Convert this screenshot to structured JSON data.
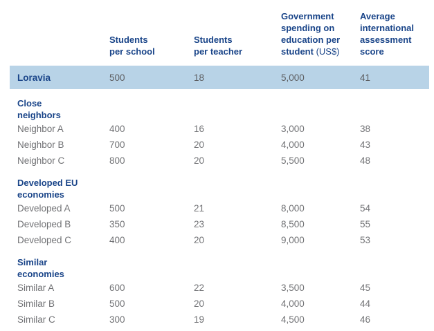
{
  "colors": {
    "highlight_band": "#b8d3e7",
    "header_text": "#1a4589",
    "data_text": "#717275",
    "background": "#ffffff"
  },
  "table": {
    "headers": [
      {
        "main": "Students\nper school",
        "suffix": ""
      },
      {
        "main": "Students\nper teacher",
        "suffix": ""
      },
      {
        "main": "Government\nspending on\neducation per\nstudent",
        "suffix": " (US$)"
      },
      {
        "main": "Average\ninternational\nassessment\nscore",
        "suffix": ""
      }
    ],
    "highlight_row": {
      "label": "Loravia",
      "values": [
        "500",
        "18",
        "5,000",
        "41"
      ]
    },
    "sections": [
      {
        "title": "Close\nneighbors",
        "rows": [
          {
            "label": "Neighbor A",
            "values": [
              "400",
              "16",
              "3,000",
              "38"
            ]
          },
          {
            "label": "Neighbor B",
            "values": [
              "700",
              "20",
              "4,000",
              "43"
            ]
          },
          {
            "label": "Neighbor C",
            "values": [
              "800",
              "20",
              "5,500",
              "48"
            ]
          }
        ]
      },
      {
        "title": "Developed EU\neconomies",
        "rows": [
          {
            "label": "Developed A",
            "values": [
              "500",
              "21",
              "8,000",
              "54"
            ]
          },
          {
            "label": "Developed B",
            "values": [
              "350",
              "23",
              "8,500",
              "55"
            ]
          },
          {
            "label": "Developed C",
            "values": [
              "400",
              "20",
              "9,000",
              "53"
            ]
          }
        ]
      },
      {
        "title": "Similar\neconomies",
        "rows": [
          {
            "label": "Similar A",
            "values": [
              "600",
              "22",
              "3,500",
              "45"
            ]
          },
          {
            "label": "Similar B",
            "values": [
              "500",
              "20",
              "4,000",
              "44"
            ]
          },
          {
            "label": "Similar C",
            "values": [
              "300",
              "19",
              "4,500",
              "46"
            ]
          }
        ]
      }
    ]
  },
  "chart_data": {
    "type": "table",
    "columns": [
      "Students per school",
      "Students per teacher",
      "Government spending on education per student (US$)",
      "Average international assessment score"
    ],
    "rows": [
      {
        "group": "",
        "label": "Loravia",
        "highlight": true,
        "values": [
          500,
          18,
          5000,
          41
        ]
      },
      {
        "group": "Close neighbors",
        "label": "Neighbor A",
        "values": [
          400,
          16,
          3000,
          38
        ]
      },
      {
        "group": "Close neighbors",
        "label": "Neighbor B",
        "values": [
          700,
          20,
          4000,
          43
        ]
      },
      {
        "group": "Close neighbors",
        "label": "Neighbor C",
        "values": [
          800,
          20,
          5500,
          48
        ]
      },
      {
        "group": "Developed EU economies",
        "label": "Developed A",
        "values": [
          500,
          21,
          8000,
          54
        ]
      },
      {
        "group": "Developed EU economies",
        "label": "Developed B",
        "values": [
          350,
          23,
          8500,
          55
        ]
      },
      {
        "group": "Developed EU economies",
        "label": "Developed C",
        "values": [
          400,
          20,
          9000,
          53
        ]
      },
      {
        "group": "Similar economies",
        "label": "Similar A",
        "values": [
          600,
          22,
          3500,
          45
        ]
      },
      {
        "group": "Similar economies",
        "label": "Similar B",
        "values": [
          500,
          20,
          4000,
          44
        ]
      },
      {
        "group": "Similar economies",
        "label": "Similar C",
        "values": [
          300,
          19,
          4500,
          46
        ]
      }
    ]
  }
}
